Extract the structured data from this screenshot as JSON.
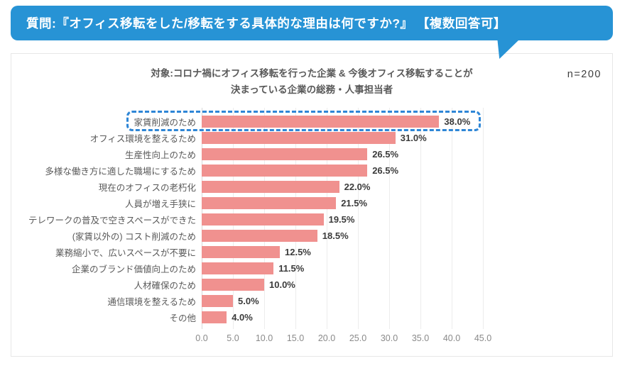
{
  "banner": {
    "text": "質問:『オフィス移転をした/移転をする具体的な理由は何ですか?』 【複数回答可】",
    "background_color": "#2793d5"
  },
  "chart_data": {
    "type": "bar",
    "orientation": "horizontal",
    "title_line1": "対象:コロナ禍にオフィス移転を行った企業 & 今後オフィス移転することが",
    "title_line2": "決まっている企業の総務・人事担当者",
    "sample_size": "n=200",
    "categories": [
      "家賃削減のため",
      "オフィス環境を整えるため",
      "生産性向上のため",
      "多様な働き方に適した職場にするため",
      "現在のオフィスの老朽化",
      "人員が増え手狭に",
      "テレワークの普及で空きスペースができた",
      "(家賃以外の) コスト削減のため",
      "業務縮小で、広いスペースが不要に",
      "企業のブランド価値向上のため",
      "人材確保のため",
      "通信環境を整えるため",
      "その他"
    ],
    "values": [
      38.0,
      31.0,
      26.5,
      26.5,
      22.0,
      21.5,
      19.5,
      18.5,
      12.5,
      11.5,
      10.0,
      5.0,
      4.0
    ],
    "value_labels": [
      "38.0%",
      "31.0%",
      "26.5%",
      "26.5%",
      "22.0%",
      "21.5%",
      "19.5%",
      "18.5%",
      "12.5%",
      "11.5%",
      "10.0%",
      "5.0%",
      "4.0%"
    ],
    "x_ticks": [
      "0.0",
      "5.0",
      "10.0",
      "15.0",
      "20.0",
      "25.0",
      "30.0",
      "35.0",
      "40.0",
      "45.0"
    ],
    "xlim": [
      0,
      45
    ],
    "grid": true,
    "legend": false,
    "bar_color": "#f0918f",
    "highlight_index": 0,
    "highlight_border_color": "#2e86d6",
    "axis_line_color": "#d8d8d8",
    "gridline_color": "#ececec"
  }
}
